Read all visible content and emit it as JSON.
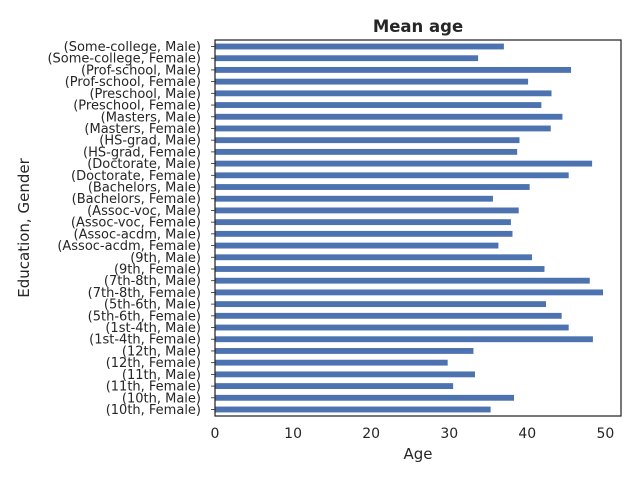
{
  "chart_data": {
    "type": "bar",
    "orientation": "horizontal",
    "title": "Mean age",
    "xlabel": "Age",
    "ylabel": "Education, Gender",
    "xlim": [
      0,
      52
    ],
    "xticks": [
      0,
      10,
      20,
      30,
      40,
      50
    ],
    "grid": false,
    "bar_color": "#4c72b0",
    "categories": [
      "(10th, Female)",
      "(10th, Male)",
      "(11th, Female)",
      "(11th, Male)",
      "(12th, Female)",
      "(12th, Male)",
      "(1st-4th, Female)",
      "(1st-4th, Male)",
      "(5th-6th, Female)",
      "(5th-6th, Male)",
      "(7th-8th, Female)",
      "(7th-8th, Male)",
      "(9th, Female)",
      "(9th, Male)",
      "(Assoc-acdm, Female)",
      "(Assoc-acdm, Male)",
      "(Assoc-voc, Female)",
      "(Assoc-voc, Male)",
      "(Bachelors, Female)",
      "(Bachelors, Male)",
      "(Doctorate, Female)",
      "(Doctorate, Male)",
      "(HS-grad, Female)",
      "(HS-grad, Male)",
      "(Masters, Female)",
      "(Masters, Male)",
      "(Preschool, Female)",
      "(Preschool, Male)",
      "(Prof-school, Female)",
      "(Prof-school, Male)",
      "(Some-college, Female)",
      "(Some-college, Male)"
    ],
    "values": [
      35.3,
      38.3,
      30.5,
      33.3,
      29.8,
      33.1,
      48.4,
      45.3,
      44.4,
      42.4,
      49.7,
      48.0,
      42.2,
      40.6,
      36.3,
      38.1,
      37.9,
      38.9,
      35.6,
      40.3,
      45.3,
      48.3,
      38.7,
      39.0,
      43.0,
      44.5,
      41.8,
      43.1,
      40.1,
      45.6,
      33.7,
      37.0
    ]
  }
}
